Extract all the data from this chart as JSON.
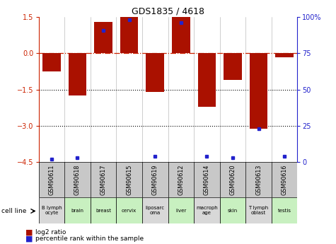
{
  "title": "GDS1835 / 4618",
  "samples": [
    "GSM90611",
    "GSM90618",
    "GSM90617",
    "GSM90615",
    "GSM90619",
    "GSM90612",
    "GSM90614",
    "GSM90620",
    "GSM90613",
    "GSM90616"
  ],
  "cell_lines": [
    "B lymph\nocyte",
    "brain",
    "breast",
    "cervix",
    "liposarc\noma",
    "liver",
    "macroph\nage",
    "skin",
    "T lymph\noblast",
    "testis"
  ],
  "cell_line_colors": [
    "#d8d8d8",
    "#c8f0c0",
    "#c8f0c0",
    "#c8f0c0",
    "#d8d8d8",
    "#c8f0c0",
    "#d8d8d8",
    "#c8f0c0",
    "#d8d8d8",
    "#c8f0c0"
  ],
  "log2_ratio": [
    -0.75,
    -1.75,
    1.3,
    1.5,
    -1.6,
    1.5,
    -2.2,
    -1.1,
    -3.1,
    -0.15
  ],
  "percentile_rank": [
    2,
    3,
    91,
    98,
    4,
    96,
    4,
    3,
    23,
    4
  ],
  "ylim_left": [
    -4.5,
    1.5
  ],
  "ylim_right": [
    0,
    100
  ],
  "yticks_left": [
    1.5,
    0,
    -1.5,
    -3,
    -4.5
  ],
  "yticks_right": [
    100,
    75,
    50,
    25,
    0
  ],
  "bar_color": "#aa1100",
  "dot_color": "#2222cc",
  "hline_0_color": "#cc2200",
  "background_color": "#ffffff",
  "gsm_box_color": "#c8c8c8"
}
